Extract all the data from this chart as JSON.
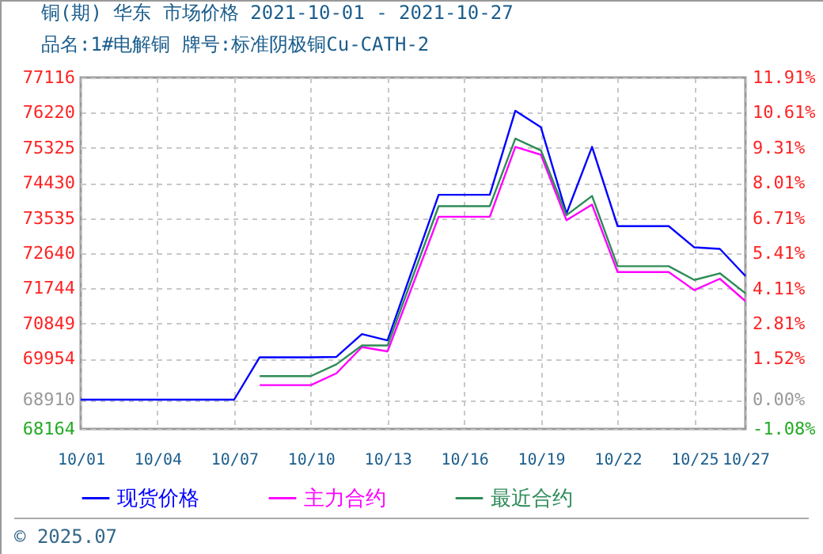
{
  "chart_data": {
    "type": "line",
    "title": "铜(期) 华东 市场价格 2021-10-01 - 2021-10-27",
    "subtitle": "品名:1#电解铜 牌号:标准阴极铜Cu-CATH-2",
    "annotations": [
      "© 2025.07"
    ],
    "x": [
      "2021-10-01",
      "2021-10-07",
      "2021-10-08",
      "2021-10-10",
      "2021-10-11",
      "2021-10-12",
      "2021-10-13",
      "2021-10-15",
      "2021-10-17",
      "2021-10-18",
      "2021-10-19",
      "2021-10-20",
      "2021-10-21",
      "2021-10-22",
      "2021-10-24",
      "2021-10-25",
      "2021-10-26",
      "2021-10-27"
    ],
    "series": [
      {
        "name": "现货价格",
        "color": "#0000ff",
        "values": [
          68910,
          68910,
          69990,
          69990,
          70000,
          70580,
          70420,
          74130,
          74130,
          76270,
          75850,
          73650,
          75350,
          73330,
          73330,
          72790,
          72750,
          72060
        ]
      },
      {
        "name": "主力合约",
        "color": "#ff00ff",
        "values": [
          null,
          null,
          69280,
          69280,
          69580,
          70250,
          70140,
          73570,
          73570,
          75350,
          75150,
          73480,
          73880,
          72160,
          72160,
          71700,
          71990,
          71420
        ]
      },
      {
        "name": "最近合约",
        "color": "#2e8b57",
        "values": [
          null,
          null,
          69510,
          69510,
          69810,
          70290,
          70290,
          73840,
          73840,
          75560,
          75260,
          73610,
          74100,
          72310,
          72310,
          71960,
          72130,
          71620
        ]
      }
    ],
    "xlim": [
      "2021-10-01",
      "2021-10-27"
    ],
    "xticks": [
      {
        "value": "2021-10-01",
        "label": "10/01"
      },
      {
        "value": "2021-10-04",
        "label": "10/04"
      },
      {
        "value": "2021-10-07",
        "label": "10/07"
      },
      {
        "value": "2021-10-10",
        "label": "10/10"
      },
      {
        "value": "2021-10-13",
        "label": "10/13"
      },
      {
        "value": "2021-10-16",
        "label": "10/16"
      },
      {
        "value": "2021-10-19",
        "label": "10/19"
      },
      {
        "value": "2021-10-22",
        "label": "10/22"
      },
      {
        "value": "2021-10-25",
        "label": "10/25"
      },
      {
        "value": "2021-10-27",
        "label": "10/27"
      }
    ],
    "ylim": [
      68164,
      77116
    ],
    "yticks": [
      68164,
      68910,
      69954,
      70849,
      71744,
      72640,
      73535,
      74430,
      75325,
      76220,
      77116
    ],
    "y2lim": [
      -1.08,
      11.91
    ],
    "y2ticks": [
      {
        "value": -1.08,
        "label": "-1.08%"
      },
      {
        "value": 0,
        "label": "0.00%"
      },
      {
        "value": 1.52,
        "label": "1.52%"
      },
      {
        "value": 2.81,
        "label": "2.81%"
      },
      {
        "value": 4.11,
        "label": "4.11%"
      },
      {
        "value": 5.41,
        "label": "5.41%"
      },
      {
        "value": 6.71,
        "label": "6.71%"
      },
      {
        "value": 8.01,
        "label": "8.01%"
      },
      {
        "value": 9.31,
        "label": "9.31%"
      },
      {
        "value": 10.61,
        "label": "10.61%"
      },
      {
        "value": 11.91,
        "label": "11.91%"
      }
    ],
    "grid": true,
    "legend": "bottom",
    "marker": "none",
    "line_style": "solid"
  }
}
